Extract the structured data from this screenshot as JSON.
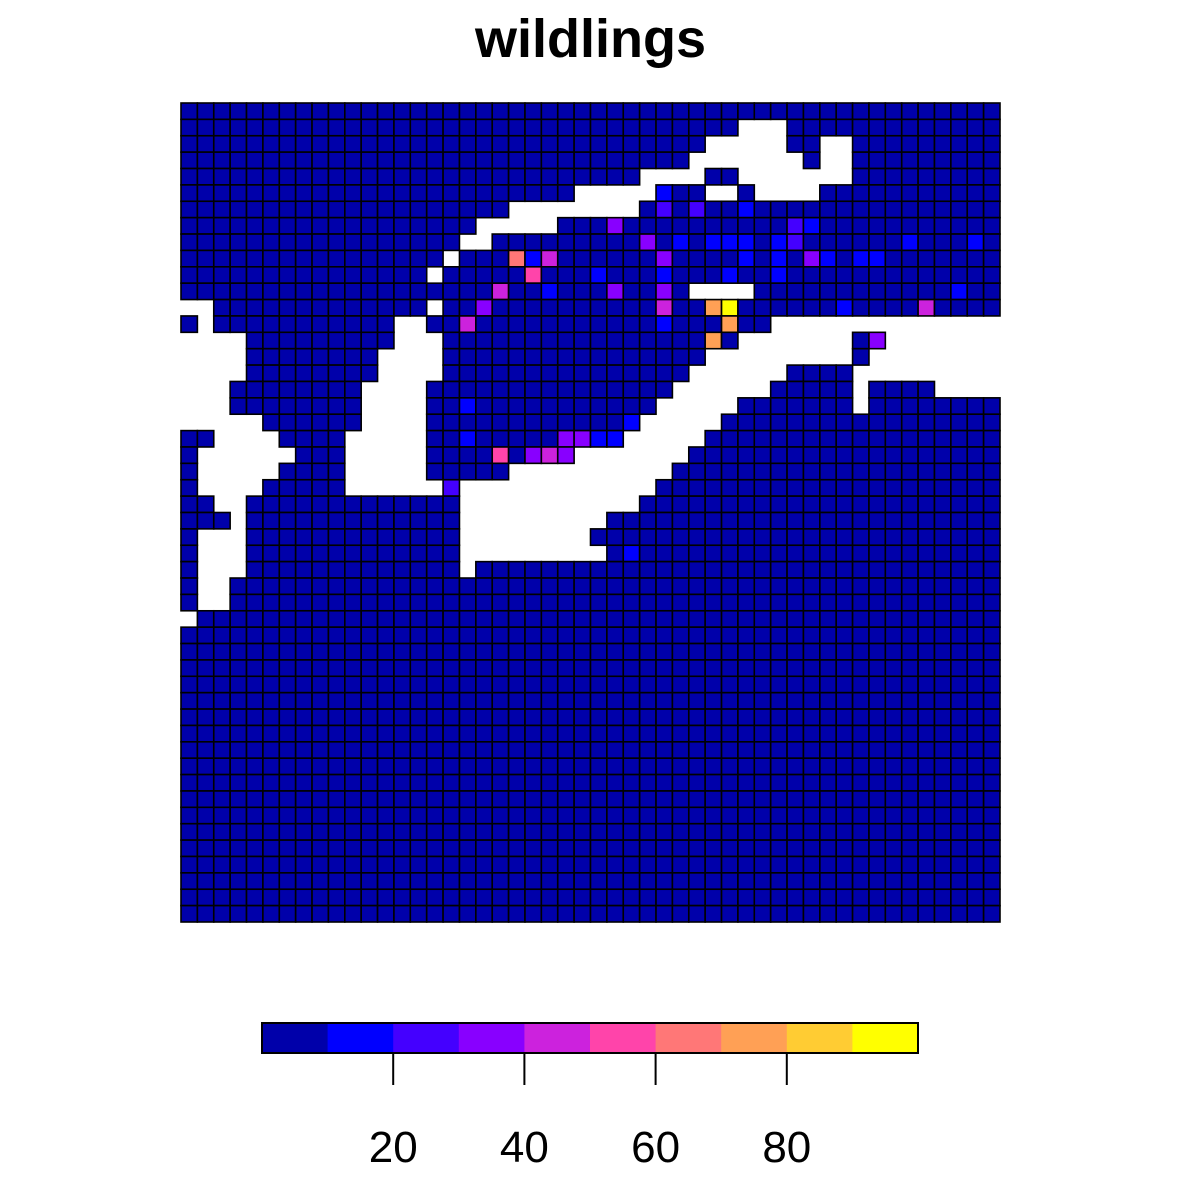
{
  "chart_data": {
    "type": "heatmap",
    "title": "wildlings",
    "xlabel": "",
    "ylabel": "",
    "grid": {
      "cols": 50,
      "rows": 50
    },
    "palette": [
      "#0000AA",
      "#0000FF",
      "#4400FF",
      "#8800FF",
      "#CC22DD",
      "#FF44AA",
      "#FF7777",
      "#FFA055",
      "#FFCC33",
      "#FFFF00"
    ],
    "legend": {
      "position": "bottom",
      "range": [
        0,
        100
      ],
      "ticks": [
        {
          "value": 20,
          "label": "20"
        },
        {
          "value": 40,
          "label": "40"
        },
        {
          "value": 60,
          "label": "60"
        },
        {
          "value": 80,
          "label": "80"
        }
      ]
    },
    "default_value": 3,
    "missing": [
      [
        1,
        34
      ],
      [
        1,
        35
      ],
      [
        1,
        36
      ],
      [
        2,
        32
      ],
      [
        2,
        33
      ],
      [
        2,
        34
      ],
      [
        2,
        35
      ],
      [
        2,
        36
      ],
      [
        2,
        39
      ],
      [
        2,
        40
      ],
      [
        3,
        31
      ],
      [
        3,
        32
      ],
      [
        3,
        33
      ],
      [
        3,
        34
      ],
      [
        3,
        35
      ],
      [
        3,
        36
      ],
      [
        3,
        37
      ],
      [
        3,
        39
      ],
      [
        3,
        40
      ],
      [
        4,
        28
      ],
      [
        4,
        29
      ],
      [
        4,
        30
      ],
      [
        4,
        31
      ],
      [
        4,
        34
      ],
      [
        4,
        35
      ],
      [
        4,
        36
      ],
      [
        4,
        37
      ],
      [
        4,
        38
      ],
      [
        4,
        39
      ],
      [
        4,
        40
      ],
      [
        5,
        24
      ],
      [
        5,
        25
      ],
      [
        5,
        26
      ],
      [
        5,
        27
      ],
      [
        5,
        28
      ],
      [
        5,
        32
      ],
      [
        5,
        33
      ],
      [
        5,
        35
      ],
      [
        5,
        36
      ],
      [
        5,
        37
      ],
      [
        5,
        38
      ],
      [
        6,
        20
      ],
      [
        6,
        21
      ],
      [
        6,
        22
      ],
      [
        6,
        23
      ],
      [
        6,
        24
      ],
      [
        6,
        25
      ],
      [
        6,
        26
      ],
      [
        6,
        27
      ],
      [
        7,
        18
      ],
      [
        7,
        19
      ],
      [
        7,
        20
      ],
      [
        7,
        21
      ],
      [
        7,
        22
      ],
      [
        8,
        17
      ],
      [
        8,
        18
      ],
      [
        9,
        16
      ],
      [
        10,
        15
      ],
      [
        11,
        31
      ],
      [
        11,
        32
      ],
      [
        11,
        33
      ],
      [
        11,
        34
      ],
      [
        12,
        0
      ],
      [
        12,
        1
      ],
      [
        12,
        15
      ],
      [
        13,
        1
      ],
      [
        13,
        13
      ],
      [
        13,
        14
      ],
      [
        13,
        36
      ],
      [
        13,
        37
      ],
      [
        13,
        38
      ],
      [
        13,
        39
      ],
      [
        13,
        40
      ],
      [
        13,
        41
      ],
      [
        13,
        42
      ],
      [
        13,
        43
      ],
      [
        13,
        44
      ],
      [
        13,
        45
      ],
      [
        13,
        46
      ],
      [
        13,
        47
      ],
      [
        13,
        48
      ],
      [
        13,
        49
      ],
      [
        14,
        0
      ],
      [
        14,
        1
      ],
      [
        14,
        2
      ],
      [
        14,
        3
      ],
      [
        14,
        13
      ],
      [
        14,
        14
      ],
      [
        14,
        15
      ],
      [
        14,
        34
      ],
      [
        14,
        35
      ],
      [
        14,
        36
      ],
      [
        14,
        37
      ],
      [
        14,
        38
      ],
      [
        14,
        39
      ],
      [
        14,
        40
      ],
      [
        14,
        43
      ],
      [
        14,
        44
      ],
      [
        14,
        45
      ],
      [
        14,
        46
      ],
      [
        14,
        47
      ],
      [
        14,
        48
      ],
      [
        14,
        49
      ],
      [
        15,
        0
      ],
      [
        15,
        1
      ],
      [
        15,
        2
      ],
      [
        15,
        3
      ],
      [
        15,
        12
      ],
      [
        15,
        13
      ],
      [
        15,
        14
      ],
      [
        15,
        15
      ],
      [
        15,
        32
      ],
      [
        15,
        33
      ],
      [
        15,
        34
      ],
      [
        15,
        35
      ],
      [
        15,
        36
      ],
      [
        15,
        37
      ],
      [
        15,
        38
      ],
      [
        15,
        39
      ],
      [
        15,
        40
      ],
      [
        15,
        42
      ],
      [
        15,
        43
      ],
      [
        15,
        44
      ],
      [
        15,
        45
      ],
      [
        15,
        46
      ],
      [
        15,
        47
      ],
      [
        15,
        48
      ],
      [
        15,
        49
      ],
      [
        16,
        0
      ],
      [
        16,
        1
      ],
      [
        16,
        2
      ],
      [
        16,
        3
      ],
      [
        16,
        12
      ],
      [
        16,
        13
      ],
      [
        16,
        14
      ],
      [
        16,
        15
      ],
      [
        16,
        31
      ],
      [
        16,
        32
      ],
      [
        16,
        33
      ],
      [
        16,
        34
      ],
      [
        16,
        35
      ],
      [
        16,
        36
      ],
      [
        16,
        41
      ],
      [
        16,
        42
      ],
      [
        16,
        43
      ],
      [
        16,
        44
      ],
      [
        16,
        45
      ],
      [
        16,
        46
      ],
      [
        16,
        47
      ],
      [
        16,
        48
      ],
      [
        16,
        49
      ],
      [
        17,
        0
      ],
      [
        17,
        1
      ],
      [
        17,
        2
      ],
      [
        17,
        11
      ],
      [
        17,
        12
      ],
      [
        17,
        13
      ],
      [
        17,
        14
      ],
      [
        17,
        30
      ],
      [
        17,
        31
      ],
      [
        17,
        32
      ],
      [
        17,
        33
      ],
      [
        17,
        34
      ],
      [
        17,
        35
      ],
      [
        17,
        41
      ],
      [
        17,
        46
      ],
      [
        17,
        47
      ],
      [
        17,
        48
      ],
      [
        17,
        49
      ],
      [
        18,
        0
      ],
      [
        18,
        1
      ],
      [
        18,
        2
      ],
      [
        18,
        11
      ],
      [
        18,
        12
      ],
      [
        18,
        13
      ],
      [
        18,
        14
      ],
      [
        18,
        29
      ],
      [
        18,
        30
      ],
      [
        18,
        31
      ],
      [
        18,
        32
      ],
      [
        18,
        33
      ],
      [
        18,
        41
      ],
      [
        19,
        0
      ],
      [
        19,
        1
      ],
      [
        19,
        2
      ],
      [
        19,
        3
      ],
      [
        19,
        4
      ],
      [
        19,
        11
      ],
      [
        19,
        12
      ],
      [
        19,
        13
      ],
      [
        19,
        14
      ],
      [
        19,
        28
      ],
      [
        19,
        29
      ],
      [
        19,
        30
      ],
      [
        19,
        31
      ],
      [
        19,
        32
      ],
      [
        20,
        2
      ],
      [
        20,
        3
      ],
      [
        20,
        4
      ],
      [
        20,
        5
      ],
      [
        20,
        10
      ],
      [
        20,
        11
      ],
      [
        20,
        12
      ],
      [
        20,
        13
      ],
      [
        20,
        14
      ],
      [
        20,
        27
      ],
      [
        20,
        28
      ],
      [
        20,
        29
      ],
      [
        20,
        30
      ],
      [
        20,
        31
      ],
      [
        21,
        1
      ],
      [
        21,
        2
      ],
      [
        21,
        3
      ],
      [
        21,
        4
      ],
      [
        21,
        5
      ],
      [
        21,
        6
      ],
      [
        21,
        10
      ],
      [
        21,
        11
      ],
      [
        21,
        12
      ],
      [
        21,
        13
      ],
      [
        21,
        14
      ],
      [
        21,
        24
      ],
      [
        21,
        25
      ],
      [
        21,
        26
      ],
      [
        21,
        27
      ],
      [
        21,
        28
      ],
      [
        21,
        29
      ],
      [
        21,
        30
      ],
      [
        22,
        1
      ],
      [
        22,
        2
      ],
      [
        22,
        3
      ],
      [
        22,
        4
      ],
      [
        22,
        5
      ],
      [
        22,
        10
      ],
      [
        22,
        11
      ],
      [
        22,
        12
      ],
      [
        22,
        13
      ],
      [
        22,
        14
      ],
      [
        22,
        20
      ],
      [
        22,
        21
      ],
      [
        22,
        22
      ],
      [
        22,
        23
      ],
      [
        22,
        24
      ],
      [
        22,
        25
      ],
      [
        22,
        26
      ],
      [
        22,
        27
      ],
      [
        22,
        28
      ],
      [
        22,
        29
      ],
      [
        23,
        1
      ],
      [
        23,
        2
      ],
      [
        23,
        3
      ],
      [
        23,
        4
      ],
      [
        23,
        10
      ],
      [
        23,
        11
      ],
      [
        23,
        12
      ],
      [
        23,
        13
      ],
      [
        23,
        14
      ],
      [
        23,
        15
      ],
      [
        23,
        17
      ],
      [
        23,
        18
      ],
      [
        23,
        19
      ],
      [
        23,
        20
      ],
      [
        23,
        21
      ],
      [
        23,
        22
      ],
      [
        23,
        23
      ],
      [
        23,
        24
      ],
      [
        23,
        25
      ],
      [
        23,
        26
      ],
      [
        23,
        27
      ],
      [
        23,
        28
      ],
      [
        24,
        2
      ],
      [
        24,
        3
      ],
      [
        24,
        17
      ],
      [
        24,
        18
      ],
      [
        24,
        19
      ],
      [
        24,
        20
      ],
      [
        24,
        21
      ],
      [
        24,
        22
      ],
      [
        24,
        23
      ],
      [
        24,
        24
      ],
      [
        24,
        25
      ],
      [
        24,
        26
      ],
      [
        24,
        27
      ],
      [
        25,
        3
      ],
      [
        25,
        17
      ],
      [
        25,
        18
      ],
      [
        25,
        19
      ],
      [
        25,
        20
      ],
      [
        25,
        21
      ],
      [
        25,
        22
      ],
      [
        25,
        23
      ],
      [
        25,
        24
      ],
      [
        25,
        25
      ],
      [
        26,
        1
      ],
      [
        26,
        2
      ],
      [
        26,
        3
      ],
      [
        26,
        17
      ],
      [
        26,
        18
      ],
      [
        26,
        19
      ],
      [
        26,
        20
      ],
      [
        26,
        21
      ],
      [
        26,
        22
      ],
      [
        26,
        23
      ],
      [
        26,
        24
      ],
      [
        27,
        1
      ],
      [
        27,
        2
      ],
      [
        27,
        3
      ],
      [
        27,
        17
      ],
      [
        27,
        18
      ],
      [
        27,
        19
      ],
      [
        27,
        20
      ],
      [
        27,
        21
      ],
      [
        27,
        22
      ],
      [
        27,
        23
      ],
      [
        27,
        24
      ],
      [
        27,
        25
      ],
      [
        28,
        1
      ],
      [
        28,
        2
      ],
      [
        28,
        3
      ],
      [
        28,
        17
      ],
      [
        29,
        1
      ],
      [
        29,
        2
      ],
      [
        30,
        1
      ],
      [
        30,
        2
      ],
      [
        31,
        0
      ]
    ],
    "values": [
      [
        5,
        29,
        13
      ],
      [
        5,
        37,
        18
      ],
      [
        6,
        29,
        22
      ],
      [
        6,
        34,
        18
      ],
      [
        6,
        31,
        27
      ],
      [
        7,
        37,
        22
      ],
      [
        7,
        26,
        36
      ],
      [
        7,
        38,
        18
      ],
      [
        8,
        28,
        36
      ],
      [
        8,
        30,
        18
      ],
      [
        8,
        33,
        18
      ],
      [
        8,
        34,
        18
      ],
      [
        8,
        37,
        27
      ],
      [
        8,
        36,
        14
      ],
      [
        8,
        32,
        13
      ],
      [
        8,
        44,
        13
      ],
      [
        8,
        48,
        13
      ],
      [
        9,
        20,
        63
      ],
      [
        9,
        21,
        13
      ],
      [
        9,
        22,
        45
      ],
      [
        9,
        29,
        36
      ],
      [
        9,
        34,
        18
      ],
      [
        9,
        36,
        13
      ],
      [
        9,
        38,
        31
      ],
      [
        9,
        39,
        13
      ],
      [
        9,
        41,
        13
      ],
      [
        9,
        42,
        13
      ],
      [
        10,
        21,
        50
      ],
      [
        10,
        29,
        13
      ],
      [
        10,
        33,
        13
      ],
      [
        10,
        36,
        13
      ],
      [
        10,
        25,
        13
      ],
      [
        11,
        19,
        40
      ],
      [
        11,
        22,
        13
      ],
      [
        11,
        26,
        31
      ],
      [
        11,
        29,
        36
      ],
      [
        11,
        31,
        63
      ],
      [
        11,
        33,
        13
      ],
      [
        11,
        34,
        13
      ],
      [
        11,
        47,
        18
      ],
      [
        12,
        18,
        36
      ],
      [
        12,
        29,
        45
      ],
      [
        12,
        32,
        72
      ],
      [
        12,
        33,
        99
      ],
      [
        12,
        40,
        13
      ],
      [
        12,
        45,
        40
      ],
      [
        13,
        17,
        40
      ],
      [
        13,
        29,
        13
      ],
      [
        13,
        33,
        72
      ],
      [
        13,
        41,
        13
      ],
      [
        13,
        42,
        13
      ],
      [
        13,
        43,
        13
      ],
      [
        13,
        44,
        13
      ],
      [
        13,
        42,
        72
      ],
      [
        14,
        32,
        72
      ],
      [
        14,
        34,
        13
      ],
      [
        14,
        42,
        31
      ],
      [
        14,
        43,
        13
      ],
      [
        15,
        33,
        13
      ],
      [
        15,
        44,
        13
      ],
      [
        16,
        31,
        63
      ],
      [
        16,
        32,
        36
      ],
      [
        17,
        30,
        72
      ],
      [
        17,
        32,
        72
      ],
      [
        18,
        17,
        13
      ],
      [
        18,
        30,
        36
      ],
      [
        18,
        31,
        36
      ],
      [
        18,
        32,
        13
      ],
      [
        19,
        27,
        18
      ],
      [
        19,
        29,
        13
      ],
      [
        20,
        17,
        13
      ],
      [
        20,
        23,
        31
      ],
      [
        20,
        24,
        31
      ],
      [
        20,
        25,
        13
      ],
      [
        20,
        26,
        13
      ],
      [
        20,
        27,
        13
      ],
      [
        20,
        30,
        13
      ],
      [
        21,
        19,
        50
      ],
      [
        21,
        21,
        36
      ],
      [
        21,
        22,
        40
      ],
      [
        21,
        23,
        36
      ],
      [
        21,
        24,
        13
      ],
      [
        23,
        16,
        22
      ],
      [
        25,
        17,
        13
      ],
      [
        27,
        27,
        13
      ]
    ]
  }
}
